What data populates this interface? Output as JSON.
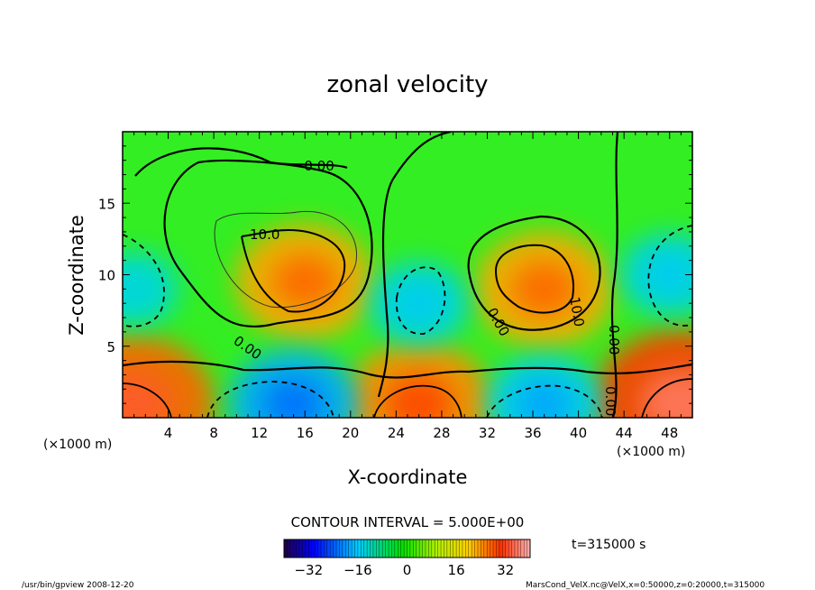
{
  "chart_data": {
    "type": "heatmap",
    "title": "zonal velocity",
    "xlabel": "X-coordinate",
    "ylabel": "Z-coordinate",
    "x_unit": "(×1000 m)",
    "x_unit_right": "(×1000 m)",
    "xlim": [
      0,
      50
    ],
    "ylim": [
      0,
      20
    ],
    "x_ticks": [
      4,
      8,
      12,
      16,
      20,
      24,
      28,
      32,
      36,
      40,
      44,
      48
    ],
    "y_ticks": [
      5,
      10,
      15
    ],
    "contour_interval": "CONTOUR INTERVAL = 5.000E+00",
    "contour_labels": [
      "-0.00",
      "10.0",
      "0.00",
      "0.00",
      "10.0",
      "0.00",
      "0.00"
    ],
    "colorbar": {
      "min": -40,
      "max": 40,
      "ticks": [
        -32,
        -16,
        0,
        16,
        32
      ]
    },
    "time_label": "t=315000 s",
    "features": [
      {
        "x": 16,
        "z": 9.5,
        "value": 20
      },
      {
        "x": 37,
        "z": 9,
        "value": 20
      },
      {
        "x": 1,
        "z": 1,
        "value": 25
      },
      {
        "x": 26,
        "z": 1,
        "value": 22
      },
      {
        "x": 49,
        "z": 1,
        "value": 28
      },
      {
        "x": 15,
        "z": 1,
        "value": -18
      },
      {
        "x": 37,
        "z": 1,
        "value": -15
      },
      {
        "x": 26,
        "z": 8,
        "value": -12
      },
      {
        "x": 1,
        "z": 9,
        "value": -10
      },
      {
        "x": 48,
        "z": 10,
        "value": -12
      }
    ]
  },
  "footer": {
    "left": "/usr/bin/gpview  2008-12-20",
    "right": "MarsCond_VelX.nc@VelX,x=0:50000,z=0:20000,t=315000"
  }
}
